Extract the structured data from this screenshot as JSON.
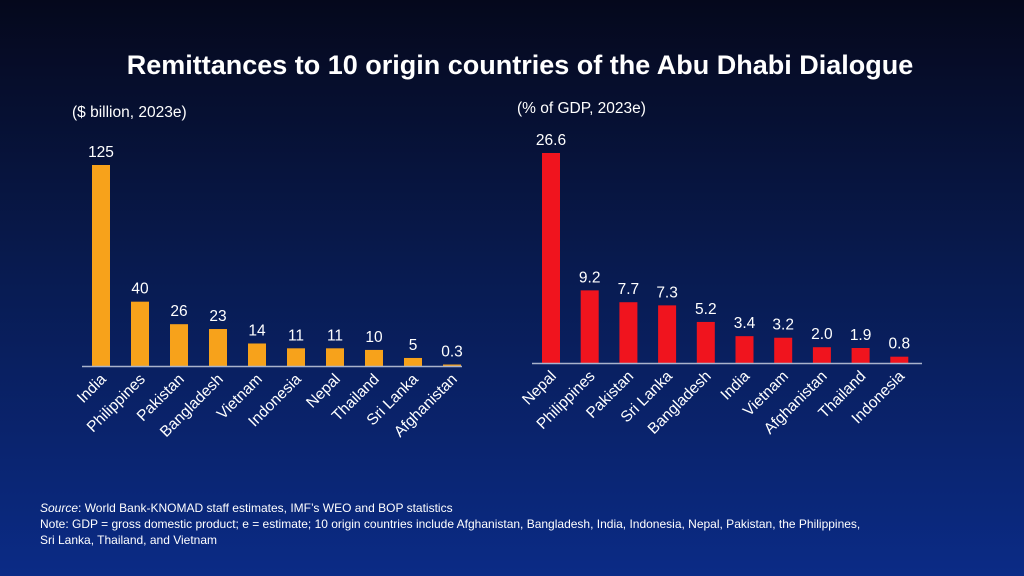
{
  "title": "Remittances to 10 origin countries of the Abu Dhabi Dialogue",
  "footer": {
    "source_label": "Source",
    "source_text": ": World Bank-KNOMAD staff estimates, IMF’s WEO and BOP statistics",
    "note_line1": "Note: GDP = gross domestic product; e = estimate; 10 origin countries include Afghanistan, Bangladesh, India, Indonesia, Nepal, Pakistan, the Philippines,",
    "note_line2": "Sri Lanka, Thailand, and Vietnam"
  },
  "chart_data": [
    {
      "type": "bar",
      "subtitle": "($ billion, 2023e)",
      "color": "#f7a21b",
      "categories": [
        "India",
        "Philippines",
        "Pakistan",
        "Bangladesh",
        "Vietnam",
        "Indonesia",
        "Nepal",
        "Thailand",
        "Sri Lanka",
        "Afghanistan"
      ],
      "values": [
        125,
        40,
        26,
        23,
        14,
        11,
        11,
        10,
        5,
        0.3
      ],
      "labels": [
        "125",
        "40",
        "26",
        "23",
        "14",
        "11",
        "11",
        "10",
        "5",
        "0.3"
      ],
      "ylim": [
        0,
        125
      ],
      "grid": false
    },
    {
      "type": "bar",
      "subtitle": "(% of GDP, 2023e)",
      "color": "#f0141e",
      "categories": [
        "Nepal",
        "Philippines",
        "Pakistan",
        "Sri Lanka",
        "Bangladesh",
        "India",
        "Vietnam",
        "Afghanistan",
        "Thailand",
        "Indonesia"
      ],
      "values": [
        26.6,
        9.2,
        7.7,
        7.3,
        5.2,
        3.4,
        3.2,
        2.0,
        1.9,
        0.8
      ],
      "labels": [
        "26.6",
        "9.2",
        "7.7",
        "7.3",
        "5.2",
        "3.4",
        "3.2",
        "2.0",
        "1.9",
        "0.8"
      ],
      "ylim": [
        0,
        26.6
      ],
      "grid": false
    }
  ]
}
